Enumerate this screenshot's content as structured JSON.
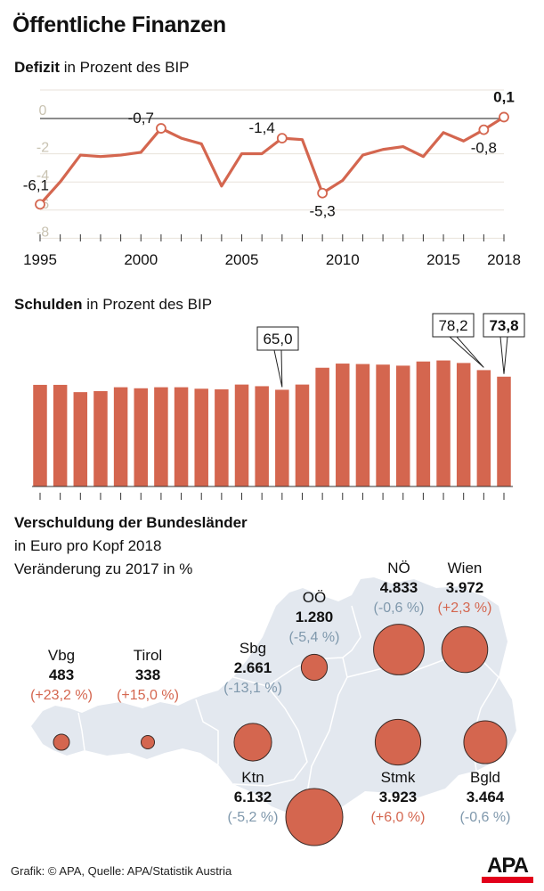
{
  "title": "Öffentliche Finanzen",
  "deficit_section": {
    "label_bold": "Defizit",
    "label_rest": " in Prozent des BIP"
  },
  "debt_section": {
    "label_bold": "Schulden",
    "label_rest": " in Prozent des BIP"
  },
  "map_section": {
    "title": "Verschuldung der Bundesländer",
    "subtitle1": "in Euro pro Kopf 2018",
    "subtitle2": "Veränderung zu 2017 in %"
  },
  "footer": "Grafik: © APA, Quelle: APA/Statistik Austria",
  "logo": "APA",
  "colors": {
    "accent": "#d4664f",
    "positive_change": "#d4664f",
    "negative_change": "#7f98ac",
    "map_fill": "#e3e8ef",
    "grid": "#e8e2da",
    "axis_label": "#c9c3b2"
  },
  "chart_data": [
    {
      "type": "line",
      "title": "Defizit in Prozent des BIP",
      "x": [
        1995,
        1996,
        1997,
        1998,
        1999,
        2000,
        2001,
        2002,
        2003,
        2004,
        2005,
        2006,
        2007,
        2008,
        2009,
        2010,
        2011,
        2012,
        2013,
        2014,
        2015,
        2016,
        2017,
        2018
      ],
      "values": [
        -6.1,
        -4.5,
        -2.6,
        -2.7,
        -2.6,
        -2.4,
        -0.7,
        -1.4,
        -1.8,
        -4.8,
        -2.5,
        -2.5,
        -1.4,
        -1.5,
        -5.3,
        -4.4,
        -2.6,
        -2.2,
        -2.0,
        -2.7,
        -1.0,
        -1.6,
        -0.8,
        0.1
      ],
      "ylim": [
        -8.5,
        1
      ],
      "yticks": [
        "0",
        "-2",
        "-4",
        "-6",
        "-8"
      ],
      "ytick_values": [
        0,
        -2,
        -4,
        -6,
        -8
      ],
      "xtick_labels": [
        "1995",
        "2000",
        "2005",
        "2010",
        "2015",
        "2018"
      ],
      "xtick_years": [
        1995,
        2000,
        2005,
        2010,
        2015,
        2018
      ],
      "annotations": [
        {
          "year": 1995,
          "label": "-6,1",
          "pos": "left"
        },
        {
          "year": 2001,
          "label": "-0,7",
          "pos": "left"
        },
        {
          "year": 2007,
          "label": "-1,4",
          "pos": "left"
        },
        {
          "year": 2009,
          "label": "-5,3",
          "pos": "below"
        },
        {
          "year": 2017,
          "label": "-0,8",
          "pos": "below"
        },
        {
          "year": 2018,
          "label": "0,1",
          "pos": "above",
          "bold": true
        }
      ],
      "grid": true
    },
    {
      "type": "bar",
      "title": "Schulden in Prozent des BIP",
      "categories": [
        1995,
        1996,
        1997,
        1998,
        1999,
        2000,
        2001,
        2002,
        2003,
        2004,
        2005,
        2006,
        2007,
        2008,
        2009,
        2010,
        2011,
        2012,
        2013,
        2014,
        2015,
        2016,
        2017,
        2018
      ],
      "values": [
        68.3,
        68.3,
        63.4,
        64.1,
        66.7,
        66.0,
        66.7,
        66.7,
        65.7,
        65.3,
        68.5,
        67.4,
        65.0,
        68.5,
        79.8,
        82.6,
        82.3,
        81.9,
        81.2,
        84.0,
        84.7,
        83.0,
        78.2,
        73.8
      ],
      "ylim": [
        0,
        90
      ],
      "xtick_labels": [
        "1995",
        "2000",
        "2005",
        "2010",
        "2015",
        "2018"
      ],
      "xtick_years": [
        1995,
        2000,
        2005,
        2010,
        2015,
        2018
      ],
      "callouts": [
        {
          "year": 2007,
          "label": "65,0",
          "bold": false
        },
        {
          "year": 2017,
          "label": "78,2",
          "bold": false
        },
        {
          "year": 2018,
          "label": "73,8",
          "bold": true
        }
      ]
    },
    {
      "type": "bubble-map",
      "title": "Verschuldung der Bundesländer",
      "regions": [
        {
          "name": "Vbg",
          "value": 483,
          "value_label": "483",
          "change": 23.2,
          "change_label": "(+23,2 %)"
        },
        {
          "name": "Tirol",
          "value": 338,
          "value_label": "338",
          "change": 15.0,
          "change_label": "(+15,0 %)"
        },
        {
          "name": "Sbg",
          "value": 2661,
          "value_label": "2.661",
          "change": -13.1,
          "change_label": "(-13,1 %)"
        },
        {
          "name": "OÖ",
          "value": 1280,
          "value_label": "1.280",
          "change": -5.4,
          "change_label": "(-5,4 %)"
        },
        {
          "name": "NÖ",
          "value": 4833,
          "value_label": "4.833",
          "change": -0.6,
          "change_label": "(-0,6 %)"
        },
        {
          "name": "Wien",
          "value": 3972,
          "value_label": "3.972",
          "change": 2.3,
          "change_label": "(+2,3 %)"
        },
        {
          "name": "Ktn",
          "value": 6132,
          "value_label": "6.132",
          "change": -5.2,
          "change_label": "(-5,2 %)"
        },
        {
          "name": "Stmk",
          "value": 3923,
          "value_label": "3.923",
          "change": 6.0,
          "change_label": "(+6,0 %)"
        },
        {
          "name": "Bgld",
          "value": 3464,
          "value_label": "3.464",
          "change": -0.6,
          "change_label": "(-0,6 %)"
        }
      ]
    }
  ]
}
